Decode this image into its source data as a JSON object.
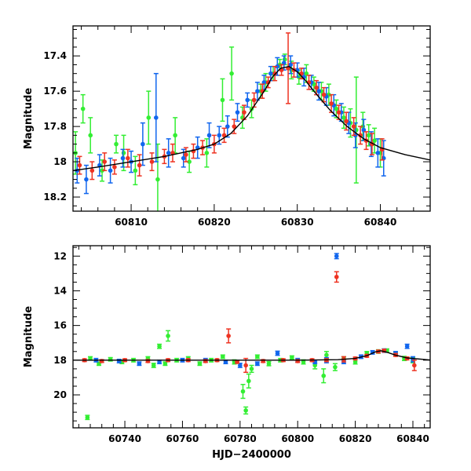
{
  "chart_data": [
    {
      "type": "scatter",
      "title": "",
      "xlabel": "",
      "ylabel": "Magnitude",
      "xlim": [
        60803,
        60846
      ],
      "ylim": [
        18.28,
        17.23
      ],
      "y_inverted": true,
      "grid": false,
      "x_ticks": [
        60810,
        60820,
        60830,
        60840
      ],
      "y_ticks": [
        17.4,
        17.6,
        17.8,
        18,
        18.2
      ],
      "colors": {
        "green": "#33ee33",
        "blue": "#1166ee",
        "red": "#ee3322",
        "model": "#000000"
      },
      "model_curve": {
        "x": [
          60803,
          60806,
          60810,
          60814,
          60818,
          60820,
          60822,
          60824,
          60826,
          60827,
          60828,
          60829,
          60830,
          60831,
          60832,
          60834,
          60836,
          60838,
          60840,
          60843,
          60846
        ],
        "y": [
          18.05,
          18.03,
          18.0,
          17.97,
          17.93,
          17.9,
          17.84,
          17.74,
          17.6,
          17.52,
          17.47,
          17.46,
          17.49,
          17.54,
          17.6,
          17.71,
          17.8,
          17.87,
          17.92,
          17.96,
          17.99
        ]
      },
      "series": [
        {
          "color": "green",
          "x": [
            60803.3,
            60804.2,
            60805.1,
            60806.5,
            60808.2,
            60809.1,
            60810.5,
            60812.1,
            60813.2,
            60815.3,
            60817.0,
            60819.1,
            60821.0,
            60822.1,
            60823.4,
            60824.5,
            60825.6,
            60826.2,
            60827.1,
            60827.9,
            60828.5,
            60829.3,
            60830.2,
            60831.1,
            60832.0,
            60832.9,
            60833.8,
            60834.7,
            60835.6,
            60836.4,
            60837.1,
            60837.9,
            60838.6,
            60839.3,
            60840.0
          ],
          "y": [
            17.95,
            17.7,
            17.85,
            18.05,
            17.9,
            17.95,
            18.05,
            17.75,
            18.1,
            17.85,
            18.0,
            17.95,
            17.65,
            17.5,
            17.75,
            17.7,
            17.6,
            17.55,
            17.5,
            17.45,
            17.42,
            17.48,
            17.52,
            17.5,
            17.56,
            17.6,
            17.62,
            17.7,
            17.75,
            17.78,
            17.82,
            17.8,
            17.85,
            17.88,
            17.95
          ],
          "err": [
            0.12,
            0.08,
            0.1,
            0.06,
            0.05,
            0.1,
            0.08,
            0.15,
            0.2,
            0.1,
            0.06,
            0.08,
            0.12,
            0.15,
            0.06,
            0.05,
            0.04,
            0.05,
            0.04,
            0.03,
            0.03,
            0.05,
            0.04,
            0.05,
            0.04,
            0.05,
            0.06,
            0.05,
            0.06,
            0.08,
            0.3,
            0.08,
            0.06,
            0.07,
            0.08
          ]
        },
        {
          "color": "blue",
          "x": [
            60803.5,
            60804.6,
            60806.2,
            60807.5,
            60809.0,
            60810.0,
            60811.4,
            60813.0,
            60814.5,
            60816.3,
            60818.0,
            60819.4,
            60820.6,
            60821.6,
            60822.8,
            60824.0,
            60825.2,
            60826.0,
            60826.8,
            60827.6,
            60828.4,
            60829.2,
            60830.0,
            60830.8,
            60831.7,
            60832.6,
            60833.5,
            60834.4,
            60835.3,
            60836.2,
            60837.0,
            60838.0,
            60838.9,
            60839.7,
            60840.4
          ],
          "y": [
            18.05,
            18.1,
            18.02,
            18.05,
            17.98,
            18.0,
            17.9,
            17.75,
            17.95,
            17.98,
            17.92,
            17.85,
            17.85,
            17.8,
            17.72,
            17.65,
            17.6,
            17.55,
            17.5,
            17.46,
            17.44,
            17.45,
            17.48,
            17.52,
            17.55,
            17.6,
            17.63,
            17.68,
            17.72,
            17.78,
            17.85,
            17.82,
            17.9,
            17.95,
            17.98
          ],
          "err": [
            0.07,
            0.08,
            0.06,
            0.07,
            0.05,
            0.06,
            0.12,
            0.25,
            0.08,
            0.05,
            0.06,
            0.07,
            0.05,
            0.06,
            0.05,
            0.04,
            0.05,
            0.04,
            0.04,
            0.05,
            0.04,
            0.05,
            0.04,
            0.05,
            0.04,
            0.05,
            0.05,
            0.06,
            0.05,
            0.06,
            0.07,
            0.06,
            0.07,
            0.08,
            0.1
          ]
        },
        {
          "color": "red",
          "x": [
            60803.8,
            60805.3,
            60806.8,
            60808.0,
            60809.6,
            60811.0,
            60812.5,
            60814.0,
            60815.0,
            60816.6,
            60817.5,
            60818.6,
            60820.0,
            60821.2,
            60822.4,
            60823.6,
            60824.8,
            60825.8,
            60826.5,
            60827.3,
            60828.1,
            60828.9,
            60829.6,
            60830.5,
            60831.4,
            60832.3,
            60833.2,
            60834.1,
            60835.0,
            60835.9,
            60836.8,
            60837.6,
            60838.3,
            60839.0,
            60840.2
          ],
          "y": [
            18.02,
            18.05,
            18.0,
            18.03,
            17.98,
            18.02,
            18.0,
            17.97,
            17.95,
            17.96,
            17.94,
            17.92,
            17.9,
            17.85,
            17.8,
            17.72,
            17.65,
            17.6,
            17.55,
            17.5,
            17.48,
            17.47,
            17.48,
            17.5,
            17.55,
            17.58,
            17.62,
            17.67,
            17.72,
            17.77,
            17.8,
            17.85,
            17.88,
            17.9,
            17.93
          ],
          "err": [
            0.05,
            0.05,
            0.05,
            0.04,
            0.05,
            0.06,
            0.05,
            0.04,
            0.05,
            0.04,
            0.04,
            0.04,
            0.05,
            0.04,
            0.04,
            0.04,
            0.04,
            0.04,
            0.03,
            0.04,
            0.03,
            0.2,
            0.04,
            0.03,
            0.04,
            0.04,
            0.04,
            0.05,
            0.04,
            0.05,
            0.05,
            0.05,
            0.05,
            0.06,
            0.06
          ]
        }
      ]
    },
    {
      "type": "scatter",
      "title": "",
      "xlabel": "HJD−2400000",
      "ylabel": "Magnitude",
      "xlim": [
        60722,
        60846
      ],
      "ylim": [
        21.9,
        11.4
      ],
      "y_inverted": true,
      "grid": false,
      "x_ticks": [
        60740,
        60760,
        60780,
        60800,
        60820,
        60840
      ],
      "y_ticks": [
        12,
        14,
        16,
        18,
        20
      ],
      "colors": {
        "green": "#33ee33",
        "blue": "#1166ee",
        "red": "#ee3322",
        "model": "#000000"
      },
      "model_curve": {
        "x": [
          60722,
          60760,
          60800,
          60814,
          60820,
          60824,
          60827,
          60829,
          60831,
          60834,
          60838,
          60846
        ],
        "y": [
          18.0,
          18.0,
          18.0,
          17.97,
          17.9,
          17.74,
          17.52,
          17.46,
          17.54,
          17.71,
          17.87,
          17.99
        ]
      },
      "series": [
        {
          "color": "green",
          "x": [
            60727,
            60728,
            60731,
            60735,
            60739,
            60743,
            60748,
            60750,
            60752,
            60754,
            60755,
            60758,
            60762,
            60766,
            60770,
            60774,
            60778,
            60781,
            60782,
            60783,
            60784,
            60786,
            60790,
            60794,
            60798,
            60802,
            60806,
            60809,
            60810,
            60813,
            60816,
            60820,
            60824,
            60828,
            60831,
            60834,
            60837,
            60840
          ],
          "y": [
            21.3,
            17.9,
            18.2,
            17.95,
            18.1,
            18.0,
            17.9,
            18.3,
            17.2,
            18.2,
            16.6,
            18.0,
            17.9,
            18.2,
            18.0,
            17.8,
            18.1,
            19.8,
            20.9,
            19.2,
            18.5,
            17.8,
            18.2,
            18.0,
            17.85,
            18.1,
            18.3,
            18.9,
            17.7,
            18.4,
            17.9,
            18.1,
            17.6,
            17.5,
            17.45,
            17.65,
            17.9,
            18.0
          ],
          "err": [
            0.12,
            0.1,
            0.1,
            0.1,
            0.1,
            0.1,
            0.1,
            0.12,
            0.12,
            0.1,
            0.3,
            0.1,
            0.1,
            0.1,
            0.1,
            0.1,
            0.12,
            0.4,
            0.2,
            0.4,
            0.2,
            0.1,
            0.12,
            0.1,
            0.1,
            0.12,
            0.2,
            0.4,
            0.2,
            0.2,
            0.1,
            0.12,
            0.1,
            0.1,
            0.1,
            0.1,
            0.12,
            0.15
          ]
        },
        {
          "color": "blue",
          "x": [
            60730,
            60738,
            60745,
            60752,
            60760,
            60768,
            60775,
            60780,
            60786,
            60793,
            60800,
            60806,
            60810,
            60813.5,
            60816,
            60822,
            60826,
            60830,
            60834,
            60838,
            60840
          ],
          "y": [
            18.0,
            18.05,
            18.2,
            18.1,
            18.0,
            18.0,
            18.1,
            18.3,
            18.2,
            17.6,
            18.0,
            18.1,
            18.0,
            12.0,
            18.1,
            17.8,
            17.55,
            17.45,
            17.6,
            17.2,
            17.95
          ],
          "err": [
            0.1,
            0.1,
            0.1,
            0.1,
            0.1,
            0.1,
            0.1,
            0.12,
            0.1,
            0.12,
            0.1,
            0.1,
            0.15,
            0.15,
            0.1,
            0.1,
            0.1,
            0.1,
            0.1,
            0.12,
            0.15
          ]
        },
        {
          "color": "red",
          "x": [
            60726,
            60732,
            60740,
            60748,
            60755,
            60762,
            60768,
            60772,
            60776,
            60779,
            60782,
            60788,
            60795,
            60800,
            60805,
            60810,
            60813.5,
            60816,
            60820,
            60824,
            60828,
            60830,
            60834,
            60838,
            60840.5
          ],
          "y": [
            18.0,
            18.05,
            18.0,
            18.05,
            18.0,
            18.0,
            18.05,
            18.0,
            16.6,
            18.1,
            18.3,
            18.05,
            18.0,
            18.05,
            18.0,
            18.0,
            13.2,
            17.95,
            17.9,
            17.75,
            17.5,
            17.45,
            17.7,
            17.9,
            18.3
          ],
          "err": [
            0.08,
            0.08,
            0.08,
            0.08,
            0.08,
            0.08,
            0.08,
            0.08,
            0.4,
            0.08,
            0.4,
            0.08,
            0.08,
            0.08,
            0.08,
            0.08,
            0.3,
            0.15,
            0.08,
            0.08,
            0.08,
            0.08,
            0.08,
            0.08,
            0.3
          ]
        }
      ]
    }
  ]
}
